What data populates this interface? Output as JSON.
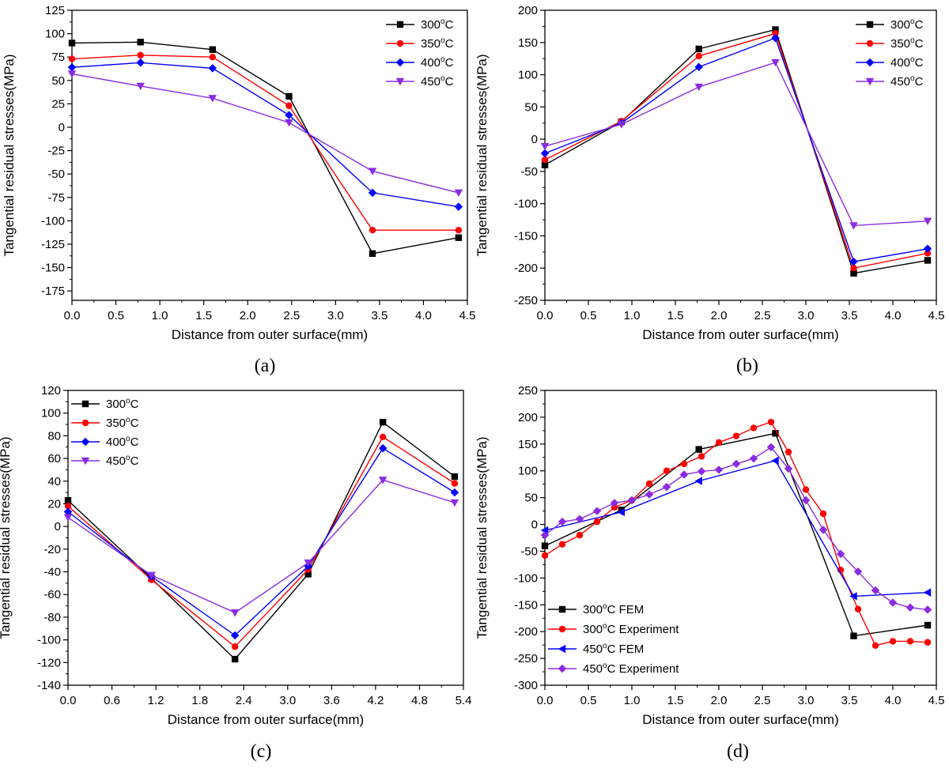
{
  "chart_data": [
    {
      "panel": "(a)",
      "type": "line",
      "xlabel": "Distance from outer surface(mm)",
      "ylabel": "Tangential residual stresses(MPa)",
      "xlim": [
        0,
        4.5
      ],
      "ylim": [
        -185,
        125
      ],
      "xticks": [
        0.0,
        0.5,
        1.0,
        1.5,
        2.0,
        2.5,
        3.0,
        3.5,
        4.0,
        4.5
      ],
      "xtick_labels": [
        "0.0",
        "0.5",
        "1.0",
        "1.5",
        "2.0",
        "2.5",
        "3.0",
        "3.5",
        "4.0",
        "4.5"
      ],
      "yticks": [
        125,
        100,
        75,
        50,
        25,
        0,
        -25,
        -50,
        -75,
        -100,
        -125,
        -150,
        -175
      ],
      "ytick_labels": [
        "125",
        "100",
        "75",
        "50",
        "25",
        "0",
        "-25",
        "-50",
        "-75",
        "-100",
        "-125",
        "-150",
        "-175"
      ],
      "legend_position": "top-right",
      "series": [
        {
          "name": "300°C",
          "color": "#000000",
          "marker": "square",
          "x": [
            0.0,
            0.78,
            1.6,
            2.47,
            3.42,
            4.4
          ],
          "y": [
            90,
            91,
            83,
            33,
            -135,
            -118
          ]
        },
        {
          "name": "350°C",
          "color": "#ff0000",
          "marker": "circle",
          "x": [
            0.0,
            0.78,
            1.6,
            2.47,
            3.42,
            4.4
          ],
          "y": [
            73,
            77,
            75,
            23,
            -110,
            -110
          ]
        },
        {
          "name": "400°C",
          "color": "#0000ff",
          "marker": "diamond",
          "x": [
            0.0,
            0.78,
            1.6,
            2.47,
            3.42,
            4.4
          ],
          "y": [
            64,
            69,
            63,
            13,
            -70,
            -85
          ]
        },
        {
          "name": "450°C",
          "color": "#8b2be2",
          "marker": "triangle-down",
          "x": [
            0.0,
            0.78,
            1.6,
            2.47,
            3.42,
            4.4
          ],
          "y": [
            57,
            44,
            31,
            5,
            -47,
            -70
          ]
        }
      ]
    },
    {
      "panel": "(b)",
      "type": "line",
      "xlabel": "Distance from outer surface(mm)",
      "ylabel": "Tangential residual stresses(MPa)",
      "xlim": [
        0,
        4.5
      ],
      "ylim": [
        -250,
        200
      ],
      "xticks": [
        0.0,
        0.5,
        1.0,
        1.5,
        2.0,
        2.5,
        3.0,
        3.5,
        4.0,
        4.5
      ],
      "xtick_labels": [
        "0.0",
        "0.5",
        "1.0",
        "1.5",
        "2.0",
        "2.5",
        "3.0",
        "3.5",
        "4.0",
        "4.5"
      ],
      "yticks": [
        200,
        150,
        100,
        50,
        0,
        -50,
        -100,
        -150,
        -200,
        -250
      ],
      "ytick_labels": [
        "200",
        "150",
        "100",
        "50",
        "0",
        "-50",
        "-100",
        "-150",
        "-200",
        "-250"
      ],
      "legend_position": "top-right",
      "series": [
        {
          "name": "300°C",
          "color": "#000000",
          "marker": "square",
          "x": [
            0.0,
            0.88,
            1.77,
            2.65,
            3.55,
            4.4
          ],
          "y": [
            -40,
            27,
            140,
            170,
            -208,
            -188
          ]
        },
        {
          "name": "350°C",
          "color": "#ff0000",
          "marker": "circle",
          "x": [
            0.0,
            0.88,
            1.77,
            2.65,
            3.55,
            4.4
          ],
          "y": [
            -32,
            28,
            129,
            164,
            -200,
            -177
          ]
        },
        {
          "name": "400°C",
          "color": "#0000ff",
          "marker": "diamond",
          "x": [
            0.0,
            0.88,
            1.77,
            2.65,
            3.55,
            4.4
          ],
          "y": [
            -22,
            25,
            112,
            157,
            -190,
            -170
          ]
        },
        {
          "name": "450°C",
          "color": "#8b2be2",
          "marker": "triangle-down",
          "x": [
            0.0,
            0.88,
            1.77,
            2.65,
            3.55,
            4.4
          ],
          "y": [
            -11,
            23,
            81,
            119,
            -134,
            -127
          ]
        }
      ]
    },
    {
      "panel": "(c)",
      "type": "line",
      "xlabel": "Distance from outer surface(mm)",
      "ylabel": "Tangential residual stresses(MPa)",
      "xlim": [
        0,
        5.4
      ],
      "ylim": [
        -140,
        120
      ],
      "xticks": [
        0.0,
        0.6,
        1.2,
        1.8,
        2.4,
        3.0,
        3.6,
        4.2,
        4.8,
        5.4
      ],
      "xtick_labels": [
        "0.0",
        "0.6",
        "1.2",
        "1.8",
        "2.4",
        "3.0",
        "3.6",
        "4.2",
        "4.8",
        "5.4"
      ],
      "yticks": [
        120,
        100,
        80,
        60,
        40,
        20,
        0,
        -20,
        -40,
        -60,
        -80,
        -100,
        -120,
        -140
      ],
      "ytick_labels": [
        "120",
        "100",
        "80",
        "60",
        "40",
        "20",
        "0",
        "-20",
        "-40",
        "-60",
        "-80",
        "-100",
        "-120",
        "-140"
      ],
      "legend_position": "top-left",
      "series": [
        {
          "name": "300°C",
          "color": "#000000",
          "marker": "square",
          "x": [
            0.0,
            1.14,
            2.28,
            3.28,
            4.3,
            5.28
          ],
          "y": [
            23,
            -46,
            -117,
            -42,
            92,
            44
          ]
        },
        {
          "name": "350°C",
          "color": "#ff0000",
          "marker": "circle",
          "x": [
            0.0,
            1.14,
            2.28,
            3.28,
            4.3,
            5.28
          ],
          "y": [
            18,
            -47,
            -106,
            -38,
            79,
            38
          ]
        },
        {
          "name": "400°C",
          "color": "#0000ff",
          "marker": "diamond",
          "x": [
            0.0,
            1.14,
            2.28,
            3.28,
            4.3,
            5.28
          ],
          "y": [
            13,
            -44,
            -96,
            -35,
            69,
            30
          ]
        },
        {
          "name": "450°C",
          "color": "#8b2be2",
          "marker": "triangle-down",
          "x": [
            0.0,
            1.14,
            2.28,
            3.28,
            4.3,
            5.28
          ],
          "y": [
            8,
            -43,
            -76,
            -32,
            41,
            21
          ]
        }
      ]
    },
    {
      "panel": "(d)",
      "type": "line",
      "xlabel": "Distance from outer surface(mm)",
      "ylabel": "Tangential residual stresses(MPa)",
      "xlim": [
        0,
        4.5
      ],
      "ylim": [
        -300,
        250
      ],
      "xticks": [
        0.0,
        0.5,
        1.0,
        1.5,
        2.0,
        2.5,
        3.0,
        3.5,
        4.0,
        4.5
      ],
      "xtick_labels": [
        "0.0",
        "0.5",
        "1.0",
        "1.5",
        "2.0",
        "2.5",
        "3.0",
        "3.5",
        "4.0",
        "4.5"
      ],
      "yticks": [
        250,
        200,
        150,
        100,
        50,
        0,
        -50,
        -100,
        -150,
        -200,
        -250,
        -300
      ],
      "ytick_labels": [
        "250",
        "200",
        "150",
        "100",
        "50",
        "0",
        "-50",
        "-100",
        "-150",
        "-200",
        "-250",
        "-300"
      ],
      "legend_position": "bottom-left",
      "series": [
        {
          "name": "300°C FEM",
          "color": "#000000",
          "marker": "square",
          "x": [
            0.0,
            0.88,
            1.77,
            2.65,
            3.55,
            4.4
          ],
          "y": [
            -40,
            27,
            140,
            170,
            -208,
            -188
          ]
        },
        {
          "name": "300°C Experiment",
          "color": "#ff0000",
          "marker": "circle",
          "x": [
            0.0,
            0.2,
            0.4,
            0.6,
            0.8,
            1.0,
            1.2,
            1.4,
            1.6,
            1.8,
            2.0,
            2.2,
            2.4,
            2.6,
            2.8,
            3.0,
            3.2,
            3.4,
            3.6,
            3.8,
            4.0,
            4.2,
            4.4
          ],
          "y": [
            -58,
            -37,
            -20,
            5,
            32,
            45,
            76,
            100,
            113,
            127,
            153,
            165,
            180,
            191,
            135,
            65,
            20,
            -85,
            -158,
            -226,
            -218,
            -218,
            -220
          ]
        },
        {
          "name": "450°C FEM",
          "color": "#0000ff",
          "marker": "triangle-left",
          "x": [
            0.0,
            0.88,
            1.77,
            2.65,
            3.55,
            4.4
          ],
          "y": [
            -11,
            23,
            81,
            119,
            -134,
            -127
          ]
        },
        {
          "name": "450°C Experiment",
          "color": "#8b2be2",
          "marker": "diamond",
          "x": [
            0.0,
            0.2,
            0.4,
            0.6,
            0.8,
            1.0,
            1.2,
            1.4,
            1.6,
            1.8,
            2.0,
            2.2,
            2.4,
            2.6,
            2.8,
            3.0,
            3.2,
            3.4,
            3.6,
            3.8,
            4.0,
            4.2,
            4.4
          ],
          "y": [
            -20,
            5,
            10,
            25,
            40,
            45,
            56,
            70,
            93,
            99,
            102,
            113,
            123,
            144,
            104,
            45,
            -10,
            -55,
            -88,
            -123,
            -146,
            -155,
            -159
          ]
        }
      ]
    }
  ]
}
